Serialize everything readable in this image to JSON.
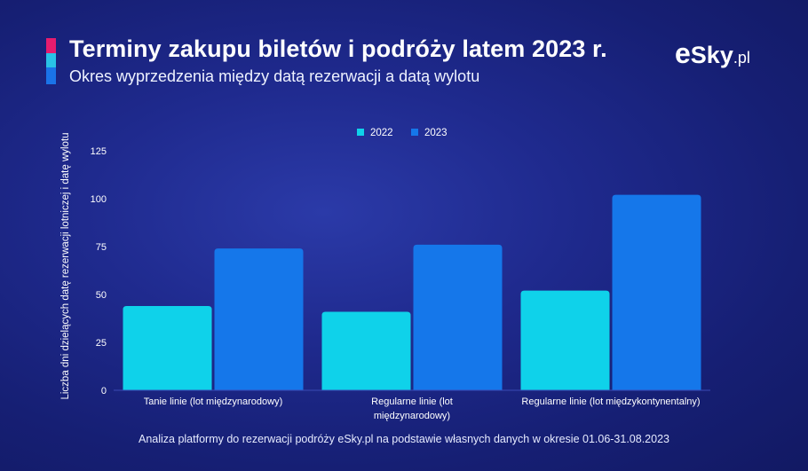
{
  "header": {
    "title": "Terminy zakupu biletów i podróży latem 2023 r.",
    "subtitle": "Okres wyprzedzenia między datą rezerwacji a datą wylotu"
  },
  "logo": {
    "e": "e",
    "sky": "Sky",
    "pl": ".pl"
  },
  "footer": "Analiza platformy do rezerwacji podróży eSky.pl na podstawie własnych danych w okresie 01.06-31.08.2023",
  "colors": {
    "accent_pink": "#e61c6e",
    "accent_cyan": "#29c2e6",
    "accent_blue": "#1a73e8",
    "series_2022": "#0fd2ea",
    "series_2023": "#1577ea"
  },
  "chart_data": {
    "type": "bar",
    "categories": [
      [
        "Tanie linie (lot międzynarodowy)"
      ],
      [
        "Regularne linie (lot",
        "międzynarodowy)"
      ],
      [
        "Regularne linie (lot międzykontynentalny)"
      ]
    ],
    "series": [
      {
        "name": "2022",
        "values": [
          44,
          41,
          52
        ]
      },
      {
        "name": "2023",
        "values": [
          74,
          76,
          102
        ]
      }
    ],
    "title": "Terminy zakupu biletów i podróży latem 2023 r.",
    "xlabel": "",
    "ylabel": "Liczba dni dzielących datę rezerwacji lotniczej i datę wylotu",
    "ylim": [
      0,
      125
    ],
    "yticks": [
      0,
      25,
      50,
      75,
      100,
      125
    ],
    "legend_position": "top-center",
    "grid": false
  }
}
